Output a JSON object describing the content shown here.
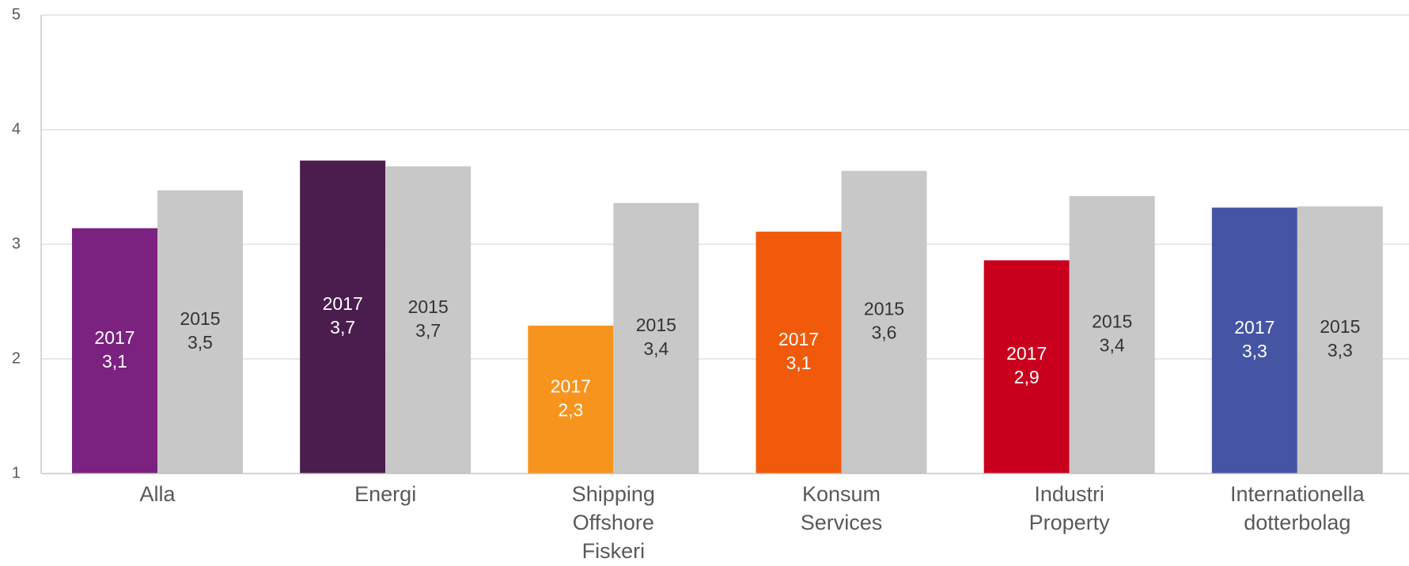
{
  "chart_data": {
    "type": "bar",
    "categories": [
      [
        "Alla"
      ],
      [
        "Energi"
      ],
      [
        "Shipping",
        "Offshore",
        "Fiskeri"
      ],
      [
        "Konsum",
        "Services"
      ],
      [
        "Industri",
        "Property"
      ],
      [
        "Internationella",
        "dotterbolag"
      ]
    ],
    "series": [
      {
        "name": "2017",
        "colors": [
          "#7b2180",
          "#4b1d4e",
          "#f7941d",
          "#f05a0a",
          "#c8001e",
          "#4654a4"
        ],
        "values": [
          3.14,
          3.73,
          2.29,
          3.11,
          2.86,
          3.32
        ],
        "value_labels": [
          "3,1",
          "3,7",
          "2,3",
          "3,1",
          "2,9",
          "3,3"
        ]
      },
      {
        "name": "2015",
        "color": "#c8c8c8",
        "values": [
          3.47,
          3.68,
          3.36,
          3.64,
          3.42,
          3.33
        ],
        "value_labels": [
          "3,5",
          "3,7",
          "3,4",
          "3,6",
          "3,4",
          "3,3"
        ]
      }
    ],
    "ylim": [
      1,
      5
    ],
    "yticks": [
      1,
      2,
      3,
      4,
      5
    ],
    "grid": true
  }
}
